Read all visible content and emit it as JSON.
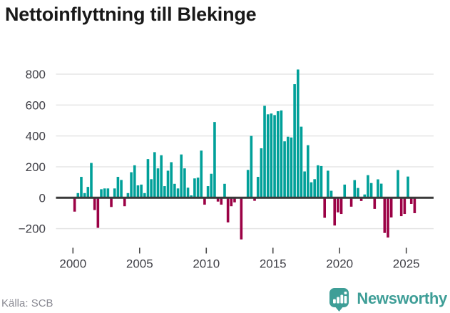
{
  "title": "Nettoinflyttning till Blekinge",
  "source": "Källa: SCB",
  "brand": {
    "name": "Newsworthy",
    "logo_icon": "bar-chart-speech-bubble"
  },
  "colors": {
    "background": "#ffffff",
    "title_text": "#191919",
    "axis_label_text": "#3f3f46",
    "source_text": "#8a8a93",
    "brand_teal": "#3e9e97",
    "gridline": "#e6e6e6",
    "zero_axis": "#3a3a3a",
    "bar_positive": "#00a099",
    "bar_negative": "#9b0145"
  },
  "chart_data": {
    "type": "bar",
    "title": "Nettoinflyttning till Blekinge",
    "x_unit": "quarter",
    "start": "2000Q1",
    "end": "2025Q3",
    "xlabel": "",
    "ylabel": "",
    "grid": true,
    "legend": "none",
    "x_ticks": [
      2000,
      2005,
      2010,
      2015,
      2020,
      2025
    ],
    "y_ticks": [
      800,
      600,
      400,
      200,
      0,
      -200
    ],
    "y_tick_labels": [
      "800",
      "600",
      "400",
      "200",
      "0",
      "−200"
    ],
    "ylim": [
      -300,
      870
    ],
    "positive_color": "#00a099",
    "negative_color": "#9b0145",
    "values": [
      -90,
      30,
      135,
      30,
      70,
      225,
      -80,
      -195,
      55,
      60,
      60,
      -60,
      60,
      135,
      115,
      -55,
      30,
      165,
      210,
      80,
      85,
      30,
      250,
      120,
      295,
      190,
      275,
      75,
      175,
      230,
      90,
      60,
      280,
      190,
      65,
      15,
      125,
      130,
      305,
      -45,
      75,
      155,
      490,
      -25,
      -45,
      90,
      -160,
      -55,
      -30,
      0,
      -270,
      0,
      180,
      400,
      -20,
      135,
      320,
      595,
      540,
      545,
      535,
      560,
      565,
      365,
      395,
      390,
      735,
      830,
      460,
      170,
      340,
      100,
      120,
      210,
      205,
      -130,
      175,
      45,
      -180,
      -95,
      -105,
      85,
      0,
      -58,
      114,
      63,
      -21,
      21,
      146,
      95,
      -72,
      119,
      91,
      -228,
      -258,
      -128,
      0,
      179,
      -119,
      -105,
      137,
      -40,
      -100
    ]
  }
}
